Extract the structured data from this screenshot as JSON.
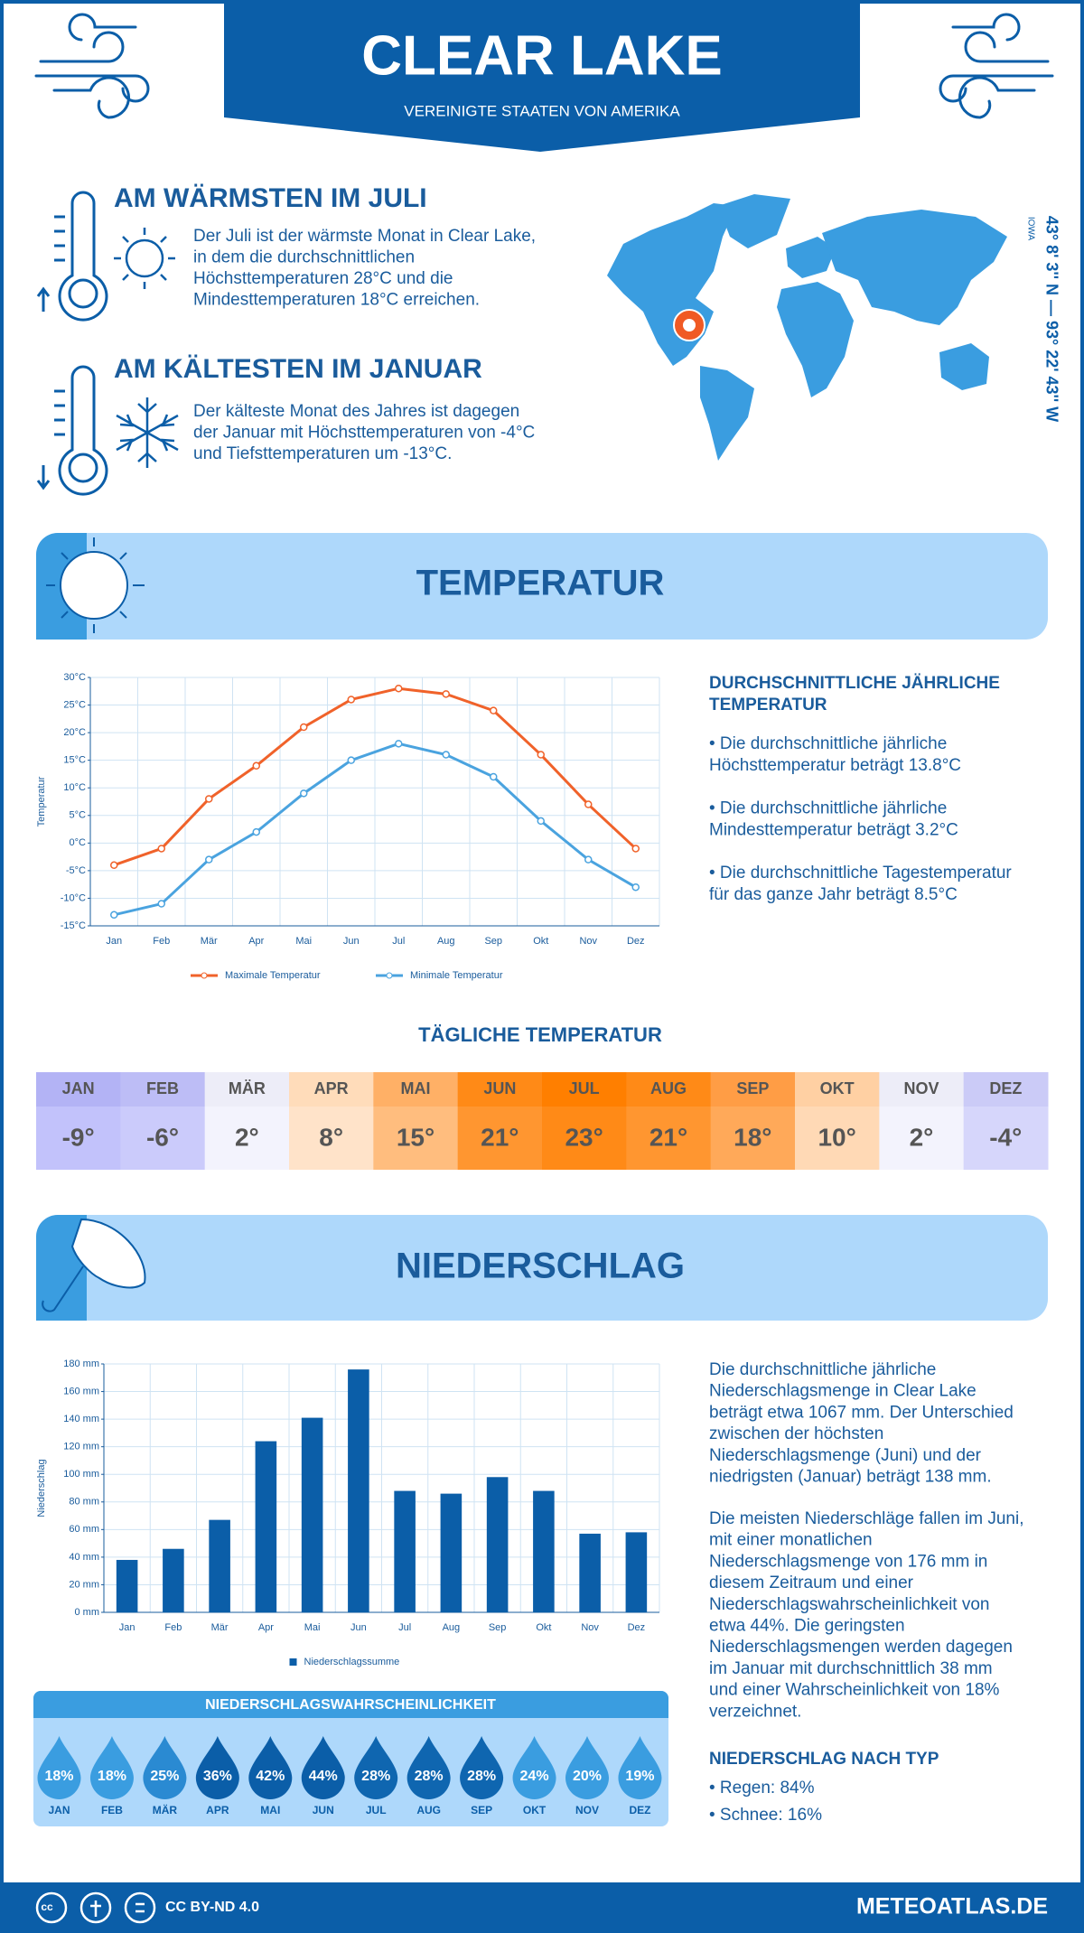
{
  "header": {
    "title": "CLEAR LAKE",
    "subtitle": "VEREINIGTE STAATEN VON AMERIKA"
  },
  "location": {
    "coordinates": "43° 8' 3'' N — 93° 22' 43'' W",
    "region": "IOWA"
  },
  "warmest": {
    "title": "AM WÄRMSTEN IM JULI",
    "text": [
      "Der Juli ist der wärmste Monat in Clear Lake,",
      "in dem die durchschnittlichen",
      "Höchsttemperaturen 28°C und die",
      "Mindesttemperaturen 18°C erreichen."
    ]
  },
  "coldest": {
    "title": "AM KÄLTESTEN IM JANUAR",
    "text": [
      "Der kälteste Monat des Jahres ist dagegen",
      "der Januar mit Höchsttemperaturen von -4°C",
      "und Tiefsttemperaturen um -13°C."
    ]
  },
  "temperature_section": {
    "title": "TEMPERATUR",
    "summary_title": [
      "DURCHSCHNITTLICHE JÄHRLICHE",
      "TEMPERATUR"
    ],
    "bullets": [
      [
        "• Die durchschnittliche jährliche",
        "Höchsttemperatur beträgt 13.8°C"
      ],
      [
        "• Die durchschnittliche jährliche",
        "Mindesttemperatur beträgt 3.2°C"
      ],
      [
        "• Die durchschnittliche Tagestemperatur",
        "für das ganze Jahr beträgt 8.5°C"
      ]
    ]
  },
  "daily_temperature": {
    "title": "TÄGLICHE TEMPERATUR",
    "months": [
      {
        "month": "JAN",
        "value": "-9°",
        "header_color": "#b3b3f5",
        "color": "#c2c2fb"
      },
      {
        "month": "FEB",
        "value": "-6°",
        "header_color": "#bdbdf6",
        "color": "#cbcbfb"
      },
      {
        "month": "MÄR",
        "value": "2°",
        "header_color": "#ededf8",
        "color": "#f3f3fd"
      },
      {
        "month": "APR",
        "value": "8°",
        "header_color": "#ffdcba",
        "color": "#ffe3c9"
      },
      {
        "month": "MAI",
        "value": "15°",
        "header_color": "#ffb066",
        "color": "#ffbd7e"
      },
      {
        "month": "JUN",
        "value": "21°",
        "header_color": "#ff8a17",
        "color": "#ff9630"
      },
      {
        "month": "JUL",
        "value": "23°",
        "header_color": "#ff7f00",
        "color": "#ff8a17"
      },
      {
        "month": "AUG",
        "value": "21°",
        "header_color": "#ff8a17",
        "color": "#ff9630"
      },
      {
        "month": "SEP",
        "value": "18°",
        "header_color": "#ff9d45",
        "color": "#ffa959"
      },
      {
        "month": "OKT",
        "value": "10°",
        "header_color": "#ffd0a3",
        "color": "#ffd9b5"
      },
      {
        "month": "NOV",
        "value": "2°",
        "header_color": "#ededf8",
        "color": "#f3f3fd"
      },
      {
        "month": "DEZ",
        "value": "-4°",
        "header_color": "#cbcbf7",
        "color": "#d6d6fb"
      }
    ]
  },
  "precipitation_section": {
    "title": "NIEDERSCHLAG",
    "paragraphs": [
      [
        "Die durchschnittliche jährliche",
        "Niederschlagsmenge in Clear Lake",
        "beträgt etwa 1067 mm. Der Unterschied",
        "zwischen der höchsten",
        "Niederschlagsmenge (Juni) und der",
        "niedrigsten (Januar) beträgt 138 mm."
      ],
      [
        "Die meisten Niederschläge fallen im Juni,",
        "mit einer monatlichen",
        "Niederschlagsmenge von 176 mm in",
        "diesem Zeitraum und einer",
        "Niederschlagswahrscheinlichkeit von",
        "etwa 44%. Die geringsten",
        "Niederschlagsmengen werden dagegen",
        "im Januar mit durchschnittlich 38 mm",
        "und einer Wahrscheinlichkeit von 18%",
        "verzeichnet."
      ]
    ],
    "type_title": "NIEDERSCHLAG NACH TYP",
    "types": [
      "• Regen: 84%",
      "• Schnee: 16%"
    ]
  },
  "probability": {
    "title": "NIEDERSCHLAGSWAHRSCHEINLICHKEIT",
    "months": [
      "JAN",
      "FEB",
      "MÄR",
      "APR",
      "MAI",
      "JUN",
      "JUL",
      "AUG",
      "SEP",
      "OKT",
      "NOV",
      "DEZ"
    ],
    "values": [
      "18%",
      "18%",
      "25%",
      "36%",
      "42%",
      "44%",
      "28%",
      "28%",
      "28%",
      "24%",
      "20%",
      "19%"
    ],
    "colors": [
      "#3a9de0",
      "#3a9de0",
      "#2a8ad2",
      "#0b5ea8",
      "#0b5ea8",
      "#0b5ea8",
      "#0f66b0",
      "#0f66b0",
      "#0f66b0",
      "#3a9de0",
      "#3a9de0",
      "#3a9de0"
    ]
  },
  "footer": {
    "license": "CC BY-ND 4.0",
    "site": "METEOATLAS.DE"
  },
  "chart_data": [
    {
      "type": "line",
      "ylabel": "Temperatur",
      "categories": [
        "Jan",
        "Feb",
        "Mär",
        "Apr",
        "Mai",
        "Jun",
        "Jul",
        "Aug",
        "Sep",
        "Okt",
        "Nov",
        "Dez"
      ],
      "series": [
        {
          "name": "Maximale Temperatur",
          "color": "#f0622a",
          "values": [
            -4,
            -1,
            8,
            14,
            21,
            26,
            28,
            27,
            24,
            16,
            7,
            -1
          ]
        },
        {
          "name": "Minimale Temperatur",
          "color": "#4aa3df",
          "values": [
            -13,
            -11,
            -3,
            2,
            9,
            15,
            18,
            16,
            12,
            4,
            -3,
            -8
          ]
        }
      ],
      "ylim": [
        -15,
        30
      ],
      "yticks": [
        {
          "value": -15,
          "label": "-15°C"
        },
        {
          "value": -10,
          "label": "-10°C"
        },
        {
          "value": -5,
          "label": "-5°C"
        },
        {
          "value": 0,
          "label": "0°C"
        },
        {
          "value": 5,
          "label": "5°C"
        },
        {
          "value": 10,
          "label": "10°C"
        },
        {
          "value": 15,
          "label": "15°C"
        },
        {
          "value": 20,
          "label": "20°C"
        },
        {
          "value": 25,
          "label": "25°C"
        },
        {
          "value": 30,
          "label": "30°C"
        }
      ],
      "grid": true,
      "legend": "bottom"
    },
    {
      "type": "bar",
      "ylabel": "Niederschlag",
      "categories": [
        "Jan",
        "Feb",
        "Mär",
        "Apr",
        "Mai",
        "Jun",
        "Jul",
        "Aug",
        "Sep",
        "Okt",
        "Nov",
        "Dez"
      ],
      "series": [
        {
          "name": "Niederschlagssumme",
          "color": "#0b5ea8",
          "values": [
            38,
            46,
            67,
            124,
            141,
            176,
            88,
            86,
            98,
            88,
            57,
            58
          ]
        }
      ],
      "ylim": [
        0,
        180
      ],
      "yticks": [
        {
          "value": 0,
          "label": "0 mm"
        },
        {
          "value": 20,
          "label": "20 mm"
        },
        {
          "value": 40,
          "label": "40 mm"
        },
        {
          "value": 60,
          "label": "60 mm"
        },
        {
          "value": 80,
          "label": "80 mm"
        },
        {
          "value": 100,
          "label": "100 mm"
        },
        {
          "value": 120,
          "label": "120 mm"
        },
        {
          "value": 140,
          "label": "140 mm"
        },
        {
          "value": 160,
          "label": "160 mm"
        },
        {
          "value": 180,
          "label": "180 mm"
        }
      ],
      "grid": true,
      "legend": "bottom"
    }
  ]
}
